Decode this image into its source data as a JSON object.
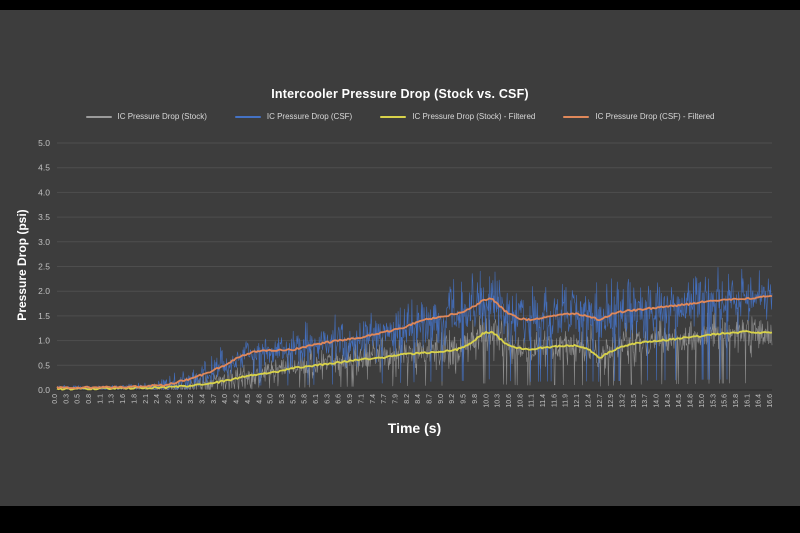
{
  "chart_data": {
    "type": "line",
    "title": "Intercooler Pressure Drop (Stock vs. CSF)",
    "xlabel": "Time (s)",
    "ylabel": "Pressure Drop (psi)",
    "xlim": [
      0,
      16.6
    ],
    "ylim": [
      0,
      5
    ],
    "grid": "on",
    "legend_position": "top",
    "y_tick_labels": [
      "0.0",
      "0.5",
      "1.0",
      "1.5",
      "2.0",
      "2.5",
      "3.0",
      "3.5",
      "4.0",
      "4.5",
      "5.0"
    ],
    "x_tick_labels": [
      "0.0",
      "0.3",
      "0.5",
      "0.8",
      "1.1",
      "1.3",
      "1.6",
      "1.8",
      "2.1",
      "2.4",
      "2.6",
      "2.9",
      "3.2",
      "3.4",
      "3.7",
      "4.0",
      "4.2",
      "4.5",
      "4.8",
      "5.0",
      "5.3",
      "5.5",
      "5.8",
      "6.1",
      "6.3",
      "6.6",
      "6.9",
      "7.1",
      "7.4",
      "7.7",
      "7.9",
      "8.2",
      "8.4",
      "8.7",
      "9.0",
      "9.2",
      "9.5",
      "9.8",
      "10.0",
      "10.3",
      "10.6",
      "10.8",
      "11.1",
      "11.4",
      "11.6",
      "11.9",
      "12.1",
      "12.4",
      "12.7",
      "12.9",
      "13.2",
      "13.5",
      "13.7",
      "14.0",
      "14.3",
      "14.5",
      "14.8",
      "15.0",
      "15.3",
      "15.6",
      "15.8",
      "16.1",
      "16.4",
      "16.6"
    ],
    "colors": {
      "background": "#3d3d3d",
      "grid": "#4e4e4e",
      "axis": "#2c2c2c",
      "tick_text": "#c2c2c2",
      "title_text": "#ffffff",
      "legend_text": "#d9d9d9"
    },
    "series": [
      {
        "name": "IC Pressure Drop (Stock)",
        "color": "#9b9b9b",
        "style": "noisy",
        "line_width": 0.6,
        "opacity": 0.85,
        "keypoints": [
          [
            0,
            0.02
          ],
          [
            1,
            0.03
          ],
          [
            2,
            0.04
          ],
          [
            2.5,
            0.05
          ],
          [
            3,
            0.08
          ],
          [
            3.5,
            0.12
          ],
          [
            4,
            0.2
          ],
          [
            4.5,
            0.3
          ],
          [
            5,
            0.35
          ],
          [
            5.5,
            0.45
          ],
          [
            6,
            0.5
          ],
          [
            6.5,
            0.55
          ],
          [
            7,
            0.62
          ],
          [
            7.5,
            0.65
          ],
          [
            8,
            0.72
          ],
          [
            8.5,
            0.75
          ],
          [
            9,
            0.78
          ],
          [
            9.3,
            0.82
          ],
          [
            9.6,
            0.95
          ],
          [
            9.9,
            1.15
          ],
          [
            10.1,
            1.18
          ],
          [
            10.4,
            0.95
          ],
          [
            10.7,
            0.85
          ],
          [
            11,
            0.82
          ],
          [
            11.5,
            0.88
          ],
          [
            12,
            0.9
          ],
          [
            12.3,
            0.85
          ],
          [
            12.6,
            0.65
          ],
          [
            12.9,
            0.8
          ],
          [
            13.2,
            0.9
          ],
          [
            13.5,
            0.95
          ],
          [
            14,
            1.0
          ],
          [
            14.5,
            1.05
          ],
          [
            15,
            1.1
          ],
          [
            15.5,
            1.15
          ],
          [
            16,
            1.18
          ],
          [
            16.6,
            1.15
          ]
        ],
        "noise_envelope": [
          [
            0,
            0.04
          ],
          [
            2,
            0.06
          ],
          [
            3,
            0.2
          ],
          [
            4,
            0.35
          ],
          [
            5,
            0.4
          ],
          [
            6,
            0.45
          ],
          [
            7,
            0.5
          ],
          [
            8,
            0.55
          ],
          [
            9,
            0.6
          ],
          [
            10,
            0.7
          ],
          [
            11,
            0.6
          ],
          [
            12,
            0.55
          ],
          [
            13,
            0.6
          ],
          [
            14,
            0.6
          ],
          [
            15,
            0.6
          ],
          [
            16.6,
            0.55
          ]
        ]
      },
      {
        "name": "IC Pressure Drop (CSF)",
        "color": "#4472c4",
        "style": "noisy",
        "line_width": 0.6,
        "opacity": 0.95,
        "keypoints": [
          [
            0,
            0.05
          ],
          [
            1,
            0.05
          ],
          [
            2,
            0.07
          ],
          [
            2.5,
            0.1
          ],
          [
            3,
            0.2
          ],
          [
            3.5,
            0.35
          ],
          [
            4,
            0.55
          ],
          [
            4.3,
            0.7
          ],
          [
            4.6,
            0.78
          ],
          [
            5,
            0.8
          ],
          [
            5.5,
            0.82
          ],
          [
            6,
            0.92
          ],
          [
            6.5,
            1.0
          ],
          [
            7,
            1.05
          ],
          [
            7.5,
            1.15
          ],
          [
            8,
            1.25
          ],
          [
            8.5,
            1.42
          ],
          [
            9,
            1.5
          ],
          [
            9.3,
            1.55
          ],
          [
            9.6,
            1.65
          ],
          [
            9.9,
            1.82
          ],
          [
            10.1,
            1.85
          ],
          [
            10.4,
            1.6
          ],
          [
            10.7,
            1.45
          ],
          [
            11,
            1.42
          ],
          [
            11.5,
            1.5
          ],
          [
            12,
            1.55
          ],
          [
            12.3,
            1.5
          ],
          [
            12.6,
            1.42
          ],
          [
            12.9,
            1.55
          ],
          [
            13.2,
            1.6
          ],
          [
            13.5,
            1.62
          ],
          [
            14,
            1.68
          ],
          [
            14.5,
            1.72
          ],
          [
            15,
            1.78
          ],
          [
            15.5,
            1.82
          ],
          [
            16,
            1.85
          ],
          [
            16.6,
            1.9
          ]
        ],
        "noise_envelope": [
          [
            0,
            0.05
          ],
          [
            2,
            0.08
          ],
          [
            3,
            0.3
          ],
          [
            4,
            0.5
          ],
          [
            5,
            0.55
          ],
          [
            6,
            0.6
          ],
          [
            7,
            0.65
          ],
          [
            8,
            0.7
          ],
          [
            9,
            0.8
          ],
          [
            10,
            0.9
          ],
          [
            11,
            0.8
          ],
          [
            12,
            0.75
          ],
          [
            13,
            0.8
          ],
          [
            14,
            0.8
          ],
          [
            15,
            0.75
          ],
          [
            16.6,
            0.7
          ]
        ]
      },
      {
        "name": "IC Pressure Drop (Stock) - Filtered",
        "color": "#d8d24a",
        "style": "filtered",
        "line_width": 1.8,
        "opacity": 1,
        "keypoints": [
          [
            0,
            0.02
          ],
          [
            1,
            0.03
          ],
          [
            2,
            0.04
          ],
          [
            2.5,
            0.05
          ],
          [
            3,
            0.08
          ],
          [
            3.5,
            0.12
          ],
          [
            4,
            0.2
          ],
          [
            4.5,
            0.3
          ],
          [
            5,
            0.35
          ],
          [
            5.5,
            0.45
          ],
          [
            6,
            0.5
          ],
          [
            6.5,
            0.55
          ],
          [
            7,
            0.62
          ],
          [
            7.5,
            0.65
          ],
          [
            8,
            0.72
          ],
          [
            8.5,
            0.75
          ],
          [
            9,
            0.78
          ],
          [
            9.3,
            0.82
          ],
          [
            9.6,
            0.95
          ],
          [
            9.9,
            1.15
          ],
          [
            10.1,
            1.18
          ],
          [
            10.4,
            0.95
          ],
          [
            10.7,
            0.85
          ],
          [
            11,
            0.82
          ],
          [
            11.5,
            0.88
          ],
          [
            12,
            0.9
          ],
          [
            12.3,
            0.85
          ],
          [
            12.6,
            0.65
          ],
          [
            12.9,
            0.8
          ],
          [
            13.2,
            0.9
          ],
          [
            13.5,
            0.95
          ],
          [
            14,
            1.0
          ],
          [
            14.5,
            1.05
          ],
          [
            15,
            1.1
          ],
          [
            15.5,
            1.15
          ],
          [
            16,
            1.18
          ],
          [
            16.6,
            1.15
          ]
        ]
      },
      {
        "name": "IC Pressure Drop (CSF) - Filtered",
        "color": "#e0885a",
        "style": "filtered",
        "line_width": 1.8,
        "opacity": 1,
        "keypoints": [
          [
            0,
            0.05
          ],
          [
            1,
            0.05
          ],
          [
            2,
            0.07
          ],
          [
            2.5,
            0.1
          ],
          [
            3,
            0.2
          ],
          [
            3.5,
            0.35
          ],
          [
            4,
            0.55
          ],
          [
            4.3,
            0.7
          ],
          [
            4.6,
            0.78
          ],
          [
            5,
            0.8
          ],
          [
            5.5,
            0.82
          ],
          [
            6,
            0.92
          ],
          [
            6.5,
            1.0
          ],
          [
            7,
            1.05
          ],
          [
            7.5,
            1.15
          ],
          [
            8,
            1.25
          ],
          [
            8.5,
            1.42
          ],
          [
            9,
            1.5
          ],
          [
            9.3,
            1.55
          ],
          [
            9.6,
            1.65
          ],
          [
            9.9,
            1.82
          ],
          [
            10.1,
            1.85
          ],
          [
            10.4,
            1.6
          ],
          [
            10.7,
            1.45
          ],
          [
            11,
            1.42
          ],
          [
            11.5,
            1.5
          ],
          [
            12,
            1.55
          ],
          [
            12.3,
            1.5
          ],
          [
            12.6,
            1.42
          ],
          [
            12.9,
            1.55
          ],
          [
            13.2,
            1.6
          ],
          [
            13.5,
            1.62
          ],
          [
            14,
            1.68
          ],
          [
            14.5,
            1.72
          ],
          [
            15,
            1.78
          ],
          [
            15.5,
            1.82
          ],
          [
            16,
            1.85
          ],
          [
            16.6,
            1.9
          ]
        ]
      }
    ]
  }
}
